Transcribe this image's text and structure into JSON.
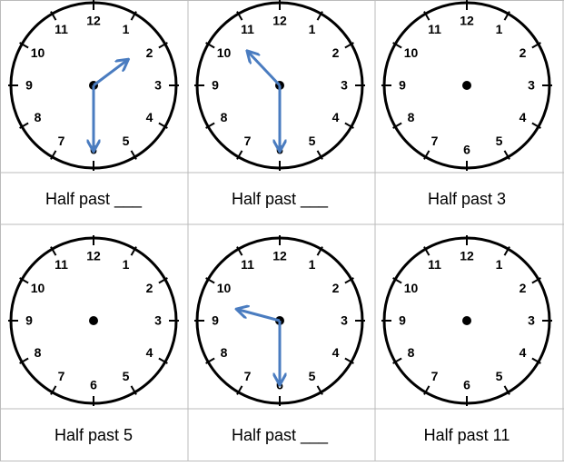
{
  "dial": [
    "12",
    "1",
    "2",
    "3",
    "4",
    "5",
    "6",
    "7",
    "8",
    "9",
    "10",
    "11"
  ],
  "clocks": [
    {
      "caption": "Half past ___"
    },
    {
      "caption": "Half past ___"
    },
    {
      "caption": "Half past 3"
    },
    {
      "caption": "Half past 5"
    },
    {
      "caption": "Half past ___"
    },
    {
      "caption": "Half past 11"
    }
  ]
}
